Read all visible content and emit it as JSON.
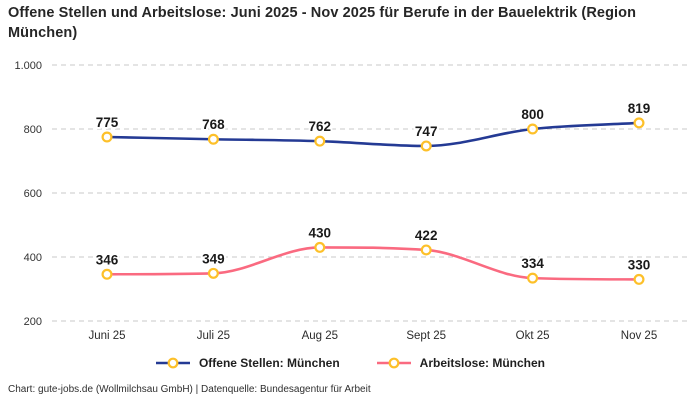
{
  "title": "Offene Stellen und Arbeitslose: Juni 2025 - Nov 2025 für Berufe in der Bauelektrik (Region München)",
  "footer": "Chart: gute-jobs.de (Wollmilchsau GmbH) | Datenquelle: Bundesagentur für Arbeit",
  "colors": {
    "offene_stellen": "#243a94",
    "arbeitslose": "#fa6a80",
    "marker_ring": "#fdc029",
    "grid": "#c9c9c9",
    "value_label": "#1a1a1a",
    "axis_text": "#333333",
    "title_text": "#262626"
  },
  "chart_data": {
    "type": "line",
    "title": "Offene Stellen und Arbeitslose: Juni 2025 - Nov 2025 für Berufe in der Bauelektrik (Region München)",
    "categories": [
      "Juni 25",
      "Juli 25",
      "Aug 25",
      "Sept 25",
      "Okt 25",
      "Nov 25"
    ],
    "series": [
      {
        "name": "Offene Stellen: München",
        "values": [
          775,
          768,
          762,
          747,
          800,
          819
        ],
        "color": "#243a94"
      },
      {
        "name": "Arbeitslose: München",
        "values": [
          346,
          349,
          430,
          422,
          334,
          330
        ],
        "color": "#fa6a80"
      }
    ],
    "xlabel": "",
    "ylabel": "",
    "ylim": [
      200,
      1000
    ],
    "yticks": [
      200,
      400,
      600,
      800,
      1000
    ],
    "ytick_labels": [
      "200",
      "400",
      "600",
      "800",
      "1.000"
    ],
    "grid": true,
    "grid_style": "dashed",
    "marker": "circle-yellow-ring",
    "curve": "monotone",
    "legend_position": "bottom",
    "data_labels": true
  },
  "legend": {
    "items": [
      {
        "label": "Offene Stellen: München",
        "color": "#243a94"
      },
      {
        "label": "Arbeitslose: München",
        "color": "#fa6a80"
      }
    ]
  }
}
